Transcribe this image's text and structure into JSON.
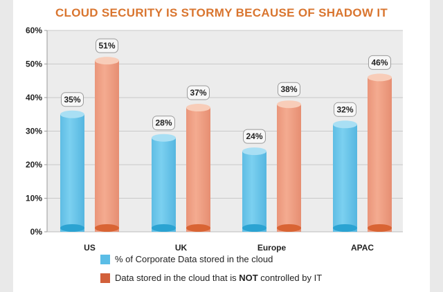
{
  "chart_data": {
    "type": "bar",
    "title": "CLOUD SECURITY IS STORMY BECAUSE OF SHADOW IT",
    "categories": [
      "US",
      "UK",
      "Europe",
      "APAC"
    ],
    "ylim": [
      0,
      60
    ],
    "yticks": [
      0,
      10,
      20,
      30,
      40,
      50,
      60
    ],
    "ytick_labels": [
      "0%",
      "10%",
      "20%",
      "30%",
      "40%",
      "50%",
      "60%"
    ],
    "series": [
      {
        "name": "% of Corporate Data stored in the cloud",
        "values": [
          35,
          28,
          24,
          32
        ],
        "labels": [
          "35%",
          "28%",
          "24%",
          "32%"
        ],
        "color": "#6fc8ea",
        "top_color": "#a9dff4",
        "base_color": "#2ba3d2"
      },
      {
        "name": "Data stored in the cloud that is NOT controlled by IT",
        "name_parts": [
          "Data stored in the cloud that is ",
          "NOT",
          " controlled by IT"
        ],
        "values": [
          51,
          37,
          38,
          46
        ],
        "labels": [
          "51%",
          "37%",
          "38%",
          "46%"
        ],
        "color": "#f0a286",
        "top_color": "#f8cdb9",
        "base_color": "#d96434"
      }
    ],
    "legend_swatch_colors": [
      "#5bbde6",
      "#d2603a"
    ],
    "grid": true,
    "legend_position": "bottom"
  }
}
